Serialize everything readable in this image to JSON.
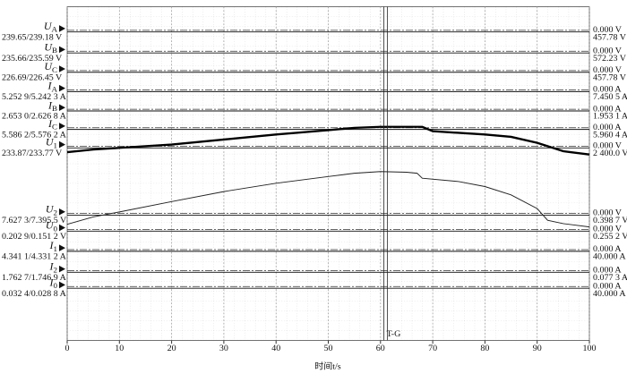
{
  "chart_data": {
    "type": "line",
    "xlabel": "时间t/s",
    "xlim": [
      0,
      100
    ],
    "xticks": [
      0,
      10,
      20,
      30,
      40,
      50,
      60,
      70,
      80,
      90,
      100
    ],
    "ylim": [
      0,
      100
    ],
    "cursor": {
      "label": "T-G",
      "x": 61
    },
    "channels": [
      {
        "symbol": "U",
        "sub": "A",
        "reading": "239.65/239.18 V",
        "offset": "0.000 V",
        "scale": "457.78 V"
      },
      {
        "symbol": "U",
        "sub": "B",
        "reading": "235.66/235.59 V",
        "offset": "0.000 V",
        "scale": "572.23 V"
      },
      {
        "symbol": "U",
        "sub": "C",
        "reading": "226.69/226.45 V",
        "offset": "0.000 V",
        "scale": "457.78 V"
      },
      {
        "symbol": "I",
        "sub": "A",
        "reading": "5.252 9/5.242 3 A",
        "offset": "0.000 A",
        "scale": "7.450 5 A"
      },
      {
        "symbol": "I",
        "sub": "B",
        "reading": "2.653 0/2.626 8 A",
        "offset": "0.000 A",
        "scale": "1.953 1 A"
      },
      {
        "symbol": "I",
        "sub": "C",
        "reading": "5.586 2/5.576 2 A",
        "offset": "0.000 A",
        "scale": "5.960 4 A"
      },
      {
        "symbol": "U",
        "sub": "1",
        "reading": "233.87/233.77 V",
        "offset": "0.000 V",
        "scale": "2 400.0 V"
      },
      {
        "symbol": "U",
        "sub": "2",
        "reading": "7.627 3/7.395 5 V",
        "offset": "0.000 V",
        "scale": "0.398 7 V"
      },
      {
        "symbol": "U",
        "sub": "0",
        "reading": "0.202 9/0.151 2 V",
        "offset": "0.000 V",
        "scale": "0.255 2 V"
      },
      {
        "symbol": "I",
        "sub": "1",
        "reading": "4.341 1/4.331 2 A",
        "offset": "0.000 A",
        "scale": "40.000 A"
      },
      {
        "symbol": "I",
        "sub": "2",
        "reading": "1.762 7/1.746 9 A",
        "offset": "0.000 A",
        "scale": "0.077 3 A"
      },
      {
        "symbol": "I",
        "sub": "0",
        "reading": "0.032 4/0.028 8 A",
        "offset": "0.000 A",
        "scale": "40.000 A"
      }
    ],
    "series": [
      {
        "color": "#000000",
        "width": 2.5,
        "x": [
          0,
          5,
          10,
          20,
          30,
          40,
          50,
          55,
          60,
          65,
          68,
          70,
          80,
          85,
          90,
          95,
          100
        ],
        "values": [
          56.4,
          57.2,
          57.7,
          58.7,
          60.2,
          61.7,
          63.0,
          63.7,
          64.0,
          64.0,
          64.0,
          62.7,
          61.7,
          61.0,
          59.2,
          56.7,
          55.7
        ]
      },
      {
        "color": "#222222",
        "width": 1,
        "x": [
          0,
          5,
          10,
          20,
          30,
          40,
          50,
          55,
          60,
          65,
          67,
          68,
          75,
          80,
          85,
          90,
          92,
          95,
          100
        ],
        "values": [
          34.8,
          37.0,
          38.5,
          41.6,
          44.6,
          47.1,
          49.1,
          50.1,
          50.6,
          50.4,
          50.1,
          48.6,
          47.6,
          46.1,
          43.6,
          39.5,
          36.0,
          35.0,
          34.0
        ]
      }
    ]
  }
}
